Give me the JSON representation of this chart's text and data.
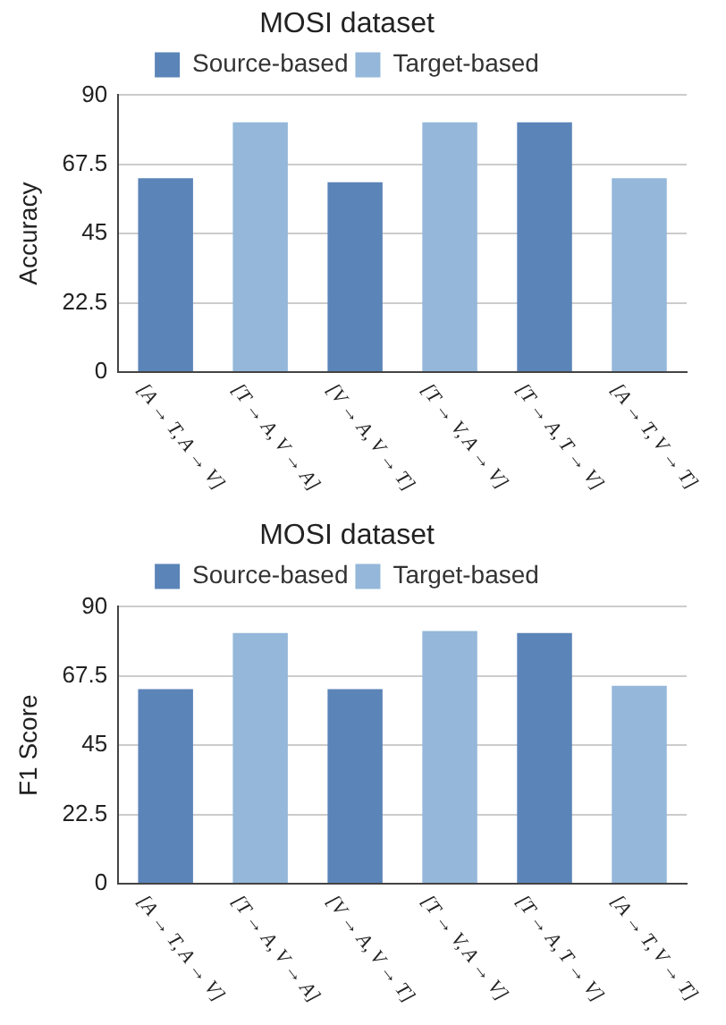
{
  "chart_data": [
    {
      "type": "bar",
      "title": "MOSI dataset",
      "ylabel": "Accuracy",
      "categories": [
        "[A → T, A → V]",
        "[T → A, V → A]",
        "[V → A, V → T]",
        "[T → V, A → V]",
        "[T → A, T → V]",
        "[A → T, V → T]"
      ],
      "series": [
        {
          "name": "Source-based",
          "color": "#5b84b8",
          "values": [
            63.0,
            null,
            61.7,
            null,
            81.2,
            null
          ]
        },
        {
          "name": "Target-based",
          "color": "#94b7da",
          "values": [
            null,
            81.2,
            null,
            81.2,
            null,
            63.0
          ]
        }
      ],
      "ylim": [
        0,
        90
      ],
      "yticks": [
        0,
        22.5,
        45,
        67.5,
        90
      ],
      "grid": "y",
      "legend": "top"
    },
    {
      "type": "bar",
      "title": "MOSI dataset",
      "ylabel": "F1 Score",
      "categories": [
        "[A → T, A → V]",
        "[T → A, V → A]",
        "[V → A, V → T]",
        "[T → V, A → V]",
        "[T → A, T → V]",
        "[A → T, V → T]"
      ],
      "series": [
        {
          "name": "Source-based",
          "color": "#5b84b8",
          "values": [
            63.2,
            null,
            63.2,
            null,
            81.5,
            null
          ]
        },
        {
          "name": "Target-based",
          "color": "#94b7da",
          "values": [
            null,
            81.5,
            null,
            82.1,
            null,
            64.3
          ]
        }
      ],
      "ylim": [
        0,
        90
      ],
      "yticks": [
        0,
        22.5,
        45,
        67.5,
        90
      ],
      "grid": "y",
      "legend": "top"
    }
  ]
}
